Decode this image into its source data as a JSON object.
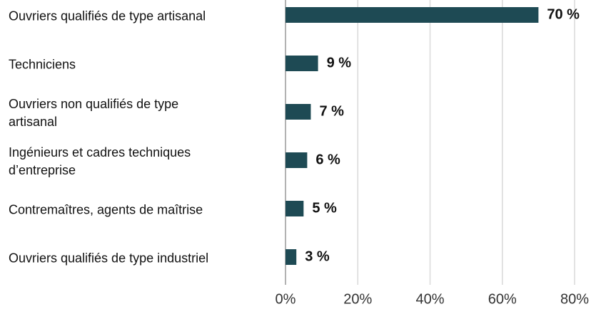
{
  "chart_data": {
    "type": "bar",
    "orientation": "horizontal",
    "categories": [
      "Ouvriers qualifiés de type artisanal",
      "Techniciens",
      "Ouvriers non qualifiés de type artisanal",
      "Ingénieurs et cadres techniques d’entreprise",
      "Contremaîtres, agents de maîtrise",
      "Ouvriers qualifiés de type industriel"
    ],
    "values": [
      70,
      9,
      7,
      6,
      5,
      3
    ],
    "value_labels": [
      "70 %",
      "9 %",
      "7 %",
      "6 %",
      "5 %",
      "3 %"
    ],
    "color": "#1e4a54",
    "xlim": [
      0,
      80
    ],
    "xticks": [
      {
        "value": 0,
        "label": "0%"
      },
      {
        "value": 20,
        "label": "20%"
      },
      {
        "value": 40,
        "label": "40%"
      },
      {
        "value": 60,
        "label": "60%"
      },
      {
        "value": 80,
        "label": "80%"
      }
    ],
    "grid": true
  }
}
